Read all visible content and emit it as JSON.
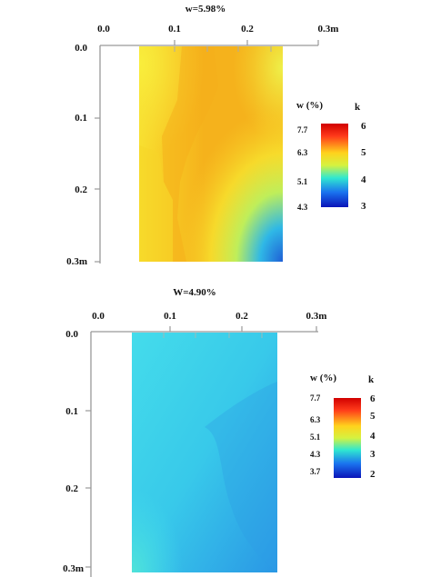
{
  "chart_data": [
    {
      "type": "heatmap",
      "title": "w=5.98%",
      "x_ticks": [
        "0.0",
        "0.1",
        "0.2",
        "0.3m"
      ],
      "y_ticks": [
        "0.0",
        "0.1",
        "0.2",
        "0.3m"
      ],
      "xlim": [
        0,
        0.3
      ],
      "ylim": [
        0,
        0.3
      ],
      "data_extent": {
        "x": [
          0.05,
          0.25
        ],
        "y": [
          0,
          0.3
        ]
      },
      "legend": {
        "w_title": "w (%)",
        "k_title": "k",
        "w_labels": [
          "7.7",
          "6.3",
          "5.1",
          "4.3"
        ],
        "k_labels": [
          "6",
          "5",
          "4",
          "3"
        ],
        "placement": "right"
      },
      "colors": {
        "dominant": "#f6b21a",
        "edge": "#f7e42c",
        "corner": "#1e63d8"
      }
    },
    {
      "type": "heatmap",
      "title": "W=4.90%",
      "x_ticks": [
        "0.0",
        "0.1",
        "0.2",
        "0.3m"
      ],
      "y_ticks": [
        "0.0",
        "0.1",
        "0.2",
        "0.3m"
      ],
      "xlim": [
        0,
        0.3
      ],
      "ylim": [
        0,
        0.3
      ],
      "data_extent": {
        "x": [
          0.05,
          0.25
        ],
        "y": [
          0,
          0.3
        ]
      },
      "legend": {
        "w_title": "w (%)",
        "k_title": "k",
        "w_labels": [
          "7.7",
          "6.3",
          "5.1",
          "4.3",
          "3.7"
        ],
        "k_labels": [
          "6",
          "5",
          "4",
          "3",
          "2"
        ],
        "placement": "right"
      },
      "colors": {
        "dominant": "#3fd6ea",
        "edge": "#2fa9ea",
        "corner": "#2a86e0"
      }
    }
  ]
}
